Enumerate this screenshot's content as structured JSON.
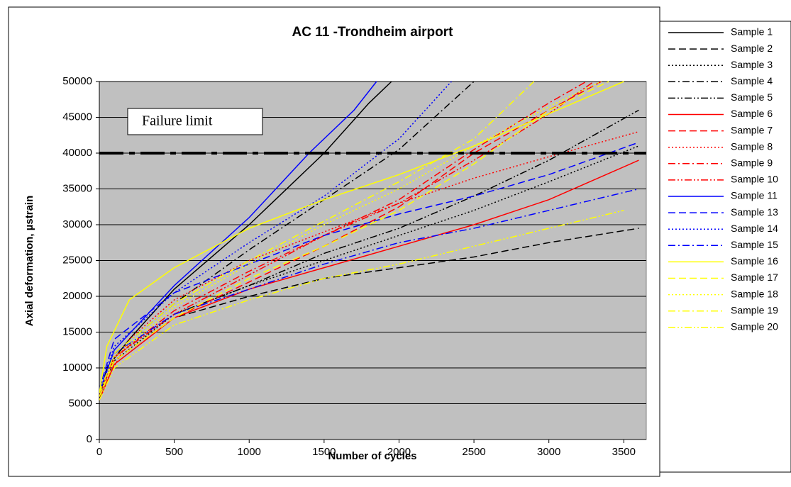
{
  "chart_data": {
    "type": "line",
    "title": "AC 11 -Trondheim airport",
    "x_label": "Number of cycles",
    "y_label": "Axial deformation, µstrain",
    "xlim": [
      0,
      3650
    ],
    "ylim": [
      0,
      50000
    ],
    "xticks": [
      0,
      500,
      1000,
      1500,
      2000,
      2500,
      3000,
      3500
    ],
    "yticks": [
      0,
      5000,
      10000,
      15000,
      20000,
      25000,
      30000,
      35000,
      40000,
      45000,
      50000
    ],
    "grid": true,
    "background": "#c0c0c0",
    "legend": "right",
    "reference_line": {
      "value": 40000,
      "label": "Failure limit",
      "color": "#000000"
    },
    "series": [
      {
        "name": "Sample 1",
        "color": "#000000",
        "dash": "solid",
        "x": [
          0,
          50,
          200,
          500,
          1000,
          1500,
          1800,
          1950
        ],
        "values": [
          5500,
          10000,
          14000,
          21000,
          30000,
          40000,
          47000,
          50000
        ]
      },
      {
        "name": "Sample 2",
        "color": "#000000",
        "dash": "dashed",
        "x": [
          0,
          100,
          500,
          1000,
          1500,
          2000,
          2500,
          3000,
          3600
        ],
        "values": [
          6000,
          11000,
          17000,
          20000,
          22500,
          24000,
          25500,
          27500,
          29500
        ]
      },
      {
        "name": "Sample 3",
        "color": "#000000",
        "dash": "dotted",
        "x": [
          0,
          100,
          500,
          1000,
          1500,
          2000,
          2500,
          3000,
          3600
        ],
        "values": [
          6000,
          11000,
          17500,
          21500,
          25000,
          28500,
          32000,
          36000,
          41000
        ]
      },
      {
        "name": "Sample 4",
        "color": "#000000",
        "dash": "dashdot",
        "x": [
          0,
          100,
          500,
          1000,
          1500,
          2000,
          2500
        ],
        "values": [
          6500,
          12000,
          19000,
          26500,
          33500,
          40500,
          50000
        ]
      },
      {
        "name": "Sample 5",
        "color": "#000000",
        "dash": "dashdotdot",
        "x": [
          0,
          100,
          500,
          1000,
          1500,
          2000,
          2500,
          3000,
          3600
        ],
        "values": [
          6000,
          11500,
          17500,
          21500,
          26000,
          29500,
          34000,
          39000,
          46000
        ]
      },
      {
        "name": "Sample 6",
        "color": "#ff0000",
        "dash": "solid",
        "x": [
          0,
          100,
          500,
          1000,
          1500,
          2000,
          2500,
          3000,
          3600
        ],
        "values": [
          5500,
          10500,
          17000,
          21000,
          24000,
          27000,
          30000,
          33500,
          39000
        ]
      },
      {
        "name": "Sample 7",
        "color": "#ff0000",
        "dash": "dashed",
        "x": [
          0,
          100,
          500,
          1000,
          1500,
          2000,
          2500,
          3000,
          3350
        ],
        "values": [
          6000,
          11000,
          17000,
          22000,
          27000,
          32500,
          40000,
          46000,
          50000
        ]
      },
      {
        "name": "Sample 8",
        "color": "#ff0000",
        "dash": "dotted",
        "x": [
          0,
          200,
          500,
          1000,
          1500,
          2000,
          2500,
          3000,
          3600
        ],
        "values": [
          6500,
          14000,
          19500,
          25000,
          29000,
          33000,
          36500,
          39500,
          43000
        ]
      },
      {
        "name": "Sample 9",
        "color": "#ff0000",
        "dash": "dashdot",
        "x": [
          0,
          100,
          500,
          1000,
          1500,
          2000,
          2500,
          3000,
          3250
        ],
        "values": [
          6000,
          11500,
          18000,
          23500,
          28500,
          33500,
          40500,
          47000,
          50000
        ]
      },
      {
        "name": "Sample 10",
        "color": "#ff0000",
        "dash": "dashdotdot",
        "x": [
          0,
          100,
          500,
          1000,
          1500,
          2000,
          2500,
          3000,
          3300
        ],
        "values": [
          6000,
          11500,
          17500,
          23000,
          28500,
          33000,
          39000,
          45500,
          50000
        ]
      },
      {
        "name": "Sample 11",
        "color": "#0000ff",
        "dash": "solid",
        "x": [
          0,
          100,
          500,
          1000,
          1400,
          1700,
          1850
        ],
        "values": [
          6500,
          12500,
          21500,
          31000,
          40000,
          46000,
          50000
        ]
      },
      {
        "name": "Sample 13",
        "color": "#0000ff",
        "dash": "dashed",
        "x": [
          0,
          100,
          500,
          1000,
          1500,
          2000,
          2500,
          3000,
          3600
        ],
        "values": [
          7000,
          14000,
          20500,
          24500,
          28500,
          31500,
          34000,
          37000,
          41500
        ]
      },
      {
        "name": "Sample 14",
        "color": "#0000ff",
        "dash": "dotted",
        "x": [
          0,
          100,
          500,
          1000,
          1500,
          2000,
          2350
        ],
        "values": [
          7000,
          13000,
          20500,
          27500,
          34000,
          42000,
          50000
        ]
      },
      {
        "name": "Sample 15",
        "color": "#0000ff",
        "dash": "dashdot",
        "x": [
          0,
          100,
          500,
          1000,
          1500,
          2000,
          2500,
          3000,
          3600
        ],
        "values": [
          6500,
          12000,
          17500,
          21000,
          24500,
          27500,
          29500,
          32000,
          35000
        ]
      },
      {
        "name": "Sample 16",
        "color": "#ffff00",
        "dash": "solid",
        "x": [
          0,
          50,
          200,
          500,
          1000,
          1500,
          2000,
          2500,
          3000,
          3500
        ],
        "values": [
          6500,
          13000,
          19500,
          24000,
          29500,
          33500,
          37000,
          41000,
          45500,
          50000
        ]
      },
      {
        "name": "Sample 17",
        "color": "#ffff00",
        "dash": "dashed",
        "x": [
          0,
          100,
          500,
          1000,
          1500,
          2000,
          2500,
          3000,
          3400
        ],
        "values": [
          6000,
          11000,
          17000,
          22500,
          27000,
          32000,
          38500,
          46000,
          50000
        ]
      },
      {
        "name": "Sample 18",
        "color": "#ffff00",
        "dash": "dotted",
        "x": [
          0,
          100,
          500,
          1000,
          1500,
          2000,
          2500,
          3000,
          3350
        ],
        "values": [
          6000,
          11500,
          18500,
          24500,
          30000,
          35000,
          41000,
          46500,
          50000
        ]
      },
      {
        "name": "Sample 19",
        "color": "#ffff00",
        "dash": "dashdot",
        "x": [
          0,
          100,
          500,
          1000,
          1500,
          2000,
          2500,
          2900
        ],
        "values": [
          6500,
          12000,
          19000,
          25000,
          30500,
          36000,
          42000,
          50000
        ]
      },
      {
        "name": "Sample 20",
        "color": "#ffff00",
        "dash": "dashdotdot",
        "x": [
          0,
          100,
          500,
          1000,
          1500,
          2000,
          2500,
          3000,
          3500
        ],
        "values": [
          5500,
          10000,
          16000,
          19500,
          22500,
          24500,
          27000,
          29500,
          32000
        ]
      }
    ]
  }
}
